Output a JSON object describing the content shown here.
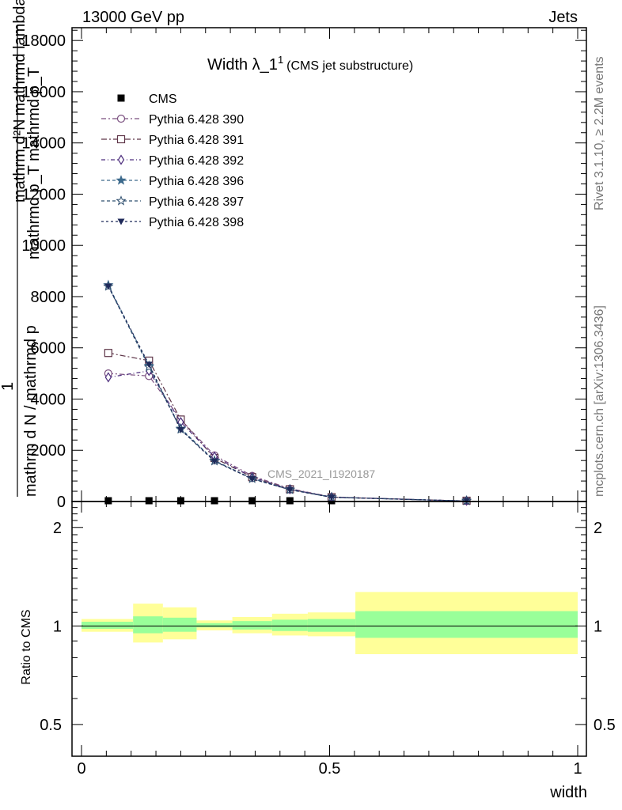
{
  "header": {
    "left": "13000 GeV pp",
    "right": "Jets"
  },
  "side_labels": {
    "rivet": "Rivet 3.1.10, ≥ 2.2M events",
    "mcplots": "mcplots.cern.ch [arXiv:1306.3436]"
  },
  "chart_data": [
    {
      "type": "line",
      "title": "Width λ_1",
      "title_sup": "1",
      "subtitle": "(CMS jet substructure)",
      "ylabel_num": "mathrm d²N",
      "ylabel_num_suffix": "mathrmd lambda",
      "ylabel_den": "mathrmd p_T mathrmd p_T",
      "ylabel_den_sub": "T",
      "ylabel_left": "1",
      "ylabel_lower": "mathrm d N / mathrmd p",
      "ylabel_lower_sub": "T",
      "ylabel_lower_tail": "mathrm d N",
      "watermark": "CMS_2021_I1920187",
      "ylim": [
        0,
        18500
      ],
      "yticks": [
        0,
        2000,
        4000,
        6000,
        8000,
        10000,
        12000,
        14000,
        16000,
        18000
      ],
      "ytick_labels": [
        "0",
        "2000",
        "4000",
        "6000",
        "8000",
        "10000",
        "12000",
        "14000",
        "16000",
        "18000"
      ],
      "xlim": [
        0,
        1
      ],
      "legend_position": "top-left",
      "x": [
        0.054,
        0.136,
        0.2,
        0.268,
        0.344,
        0.42,
        0.504,
        0.776
      ],
      "series": [
        {
          "name": "CMS",
          "color": "#000000",
          "marker": "square-filled",
          "dash": "",
          "values": [
            16,
            16,
            14,
            12,
            9,
            6,
            3,
            1
          ]
        },
        {
          "name": "Pythia 6.428 390",
          "color": "#7a4f7f",
          "marker": "circle-open",
          "dash": "6,3,2,3",
          "values": [
            5000,
            4900,
            3200,
            1800,
            1000,
            500,
            180,
            20
          ]
        },
        {
          "name": "Pythia 6.428 391",
          "color": "#5e3548",
          "marker": "square-open",
          "dash": "7,3,2,3",
          "values": [
            5800,
            5500,
            3200,
            1700,
            950,
            480,
            170,
            20
          ]
        },
        {
          "name": "Pythia 6.428 392",
          "color": "#4e2f7e",
          "marker": "diamond-open",
          "dash": "5,3,1,3",
          "values": [
            4850,
            5100,
            3100,
            1750,
            950,
            480,
            170,
            20
          ]
        },
        {
          "name": "Pythia 6.428 396",
          "color": "#3d6a8c",
          "marker": "star-filled",
          "dash": "4,3",
          "values": [
            8450,
            5300,
            2850,
            1600,
            900,
            470,
            170,
            20
          ]
        },
        {
          "name": "Pythia 6.428 397",
          "color": "#2f4f6f",
          "marker": "star-open",
          "dash": "4,3",
          "values": [
            8400,
            5250,
            2820,
            1580,
            890,
            460,
            165,
            20
          ]
        },
        {
          "name": "Pythia 6.428 398",
          "color": "#1f2a5a",
          "marker": "triangle-down-filled",
          "dash": "3,3",
          "values": [
            8400,
            5350,
            2800,
            1570,
            880,
            460,
            165,
            20
          ]
        }
      ]
    },
    {
      "type": "area",
      "ylabel": "Ratio to CMS",
      "ylim": [
        0.4,
        2.4
      ],
      "yscale": "log",
      "yticks": [
        0.5,
        1,
        2
      ],
      "ytick_labels": [
        "0.5",
        "1",
        "2"
      ],
      "xlabel": "width",
      "xlim": [
        0,
        1
      ],
      "xticks": [
        0,
        0.5,
        1
      ],
      "xtick_labels": [
        "0",
        "0.5",
        "1"
      ],
      "band_colors": {
        "inner": "#99ff99",
        "outer": "#ffff99"
      },
      "bins": [
        {
          "x0": 0.0,
          "x1": 0.104,
          "inner": [
            0.98,
            1.03
          ],
          "outer": [
            0.96,
            1.05
          ]
        },
        {
          "x0": 0.104,
          "x1": 0.164,
          "inner": [
            0.95,
            1.07
          ],
          "outer": [
            0.89,
            1.17
          ]
        },
        {
          "x0": 0.164,
          "x1": 0.232,
          "inner": [
            0.96,
            1.06
          ],
          "outer": [
            0.91,
            1.14
          ]
        },
        {
          "x0": 0.232,
          "x1": 0.304,
          "inner": [
            0.99,
            1.02
          ],
          "outer": [
            0.97,
            1.04
          ]
        },
        {
          "x0": 0.304,
          "x1": 0.384,
          "inner": [
            0.975,
            1.035
          ],
          "outer": [
            0.95,
            1.065
          ]
        },
        {
          "x0": 0.384,
          "x1": 0.456,
          "inner": [
            0.965,
            1.045
          ],
          "outer": [
            0.935,
            1.09
          ]
        },
        {
          "x0": 0.456,
          "x1": 0.552,
          "inner": [
            0.96,
            1.05
          ],
          "outer": [
            0.93,
            1.1
          ]
        },
        {
          "x0": 0.552,
          "x1": 1.0,
          "inner": [
            0.92,
            1.11
          ],
          "outer": [
            0.82,
            1.27
          ]
        }
      ]
    }
  ]
}
